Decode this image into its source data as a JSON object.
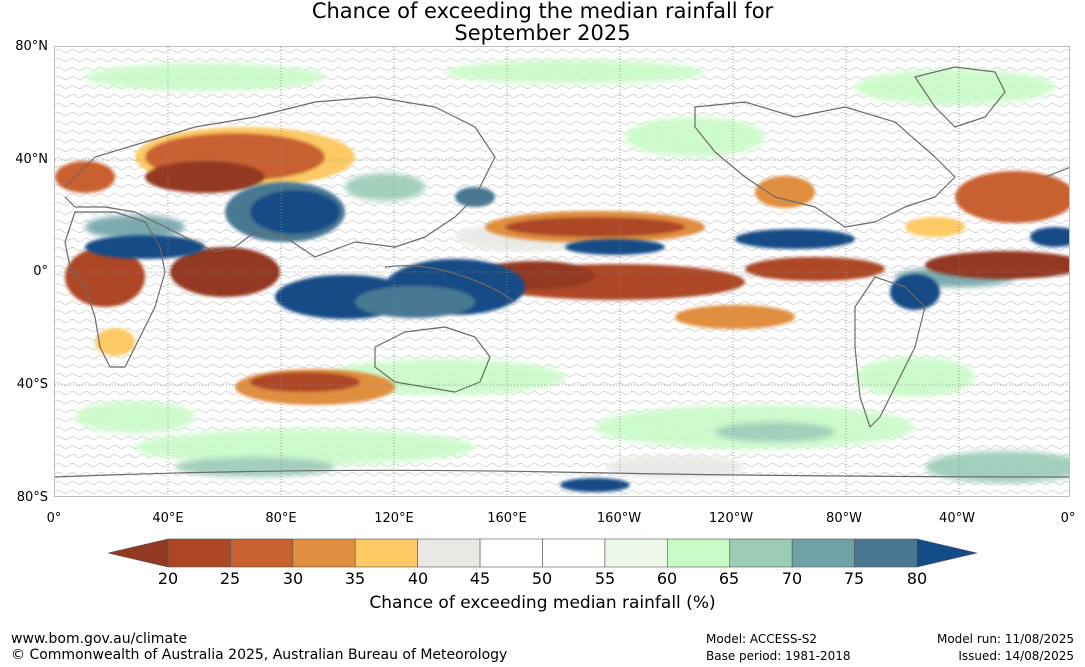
{
  "title": {
    "line1": "Chance of exceeding the median rainfall for",
    "line2": "September 2025"
  },
  "axes": {
    "lat_labels": [
      "80°N",
      "40°N",
      "0°",
      "40°S",
      "80°S"
    ],
    "lon_labels": [
      "0°",
      "40°E",
      "80°E",
      "120°E",
      "160°E",
      "160°W",
      "120°W",
      "80°W",
      "40°W",
      "0°"
    ]
  },
  "legend": {
    "ticks": [
      "20",
      "25",
      "30",
      "35",
      "40",
      "45",
      "50",
      "55",
      "60",
      "65",
      "70",
      "75",
      "80"
    ],
    "title": "Chance of exceeding median rainfall (%)",
    "colors": {
      "below20": "#933821",
      "20-25": "#ad4625",
      "25-30": "#c96030",
      "30-35": "#e08e40",
      "35-40": "#fdc965",
      "40-45": "#e9e8e4",
      "45-50": "#ffffff",
      "50-55": "#ffffff",
      "55-60": "#ecf6e9",
      "60-65": "#c9fbc7",
      "65-70": "#99cbb5",
      "70-75": "#6ea2a7",
      "75-80": "#4a7893",
      "above80": "#134c86"
    }
  },
  "footer": {
    "website": "www.bom.gov.au/climate",
    "copyright": "© Commonwealth of Australia 2025, Australian Bureau of Meteorology",
    "model": "Model: ACCESS-S2",
    "base_period": "Base period: 1981-2018",
    "model_run": "Model run: 11/08/2025",
    "issued": "Issued: 14/08/2025"
  }
}
